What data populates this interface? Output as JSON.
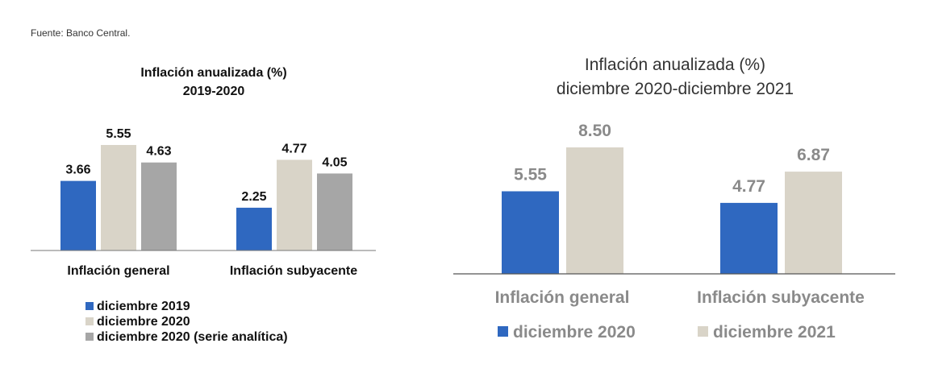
{
  "source": "Fuente: Banco Central.",
  "colors": {
    "blue": "#2f68c0",
    "beige": "#d9d4c8",
    "gray": "#a6a6a6",
    "axis": "#555555"
  },
  "chart_data": [
    {
      "type": "bar",
      "title": "Inflación anualizada (%)",
      "subtitle": "2019-2020",
      "categories": [
        "Inflación general",
        "Inflación subyacente"
      ],
      "series": [
        {
          "name": "diciembre 2019",
          "values": [
            3.66,
            2.25
          ]
        },
        {
          "name": "diciembre 2020",
          "values": [
            5.55,
            4.77
          ]
        },
        {
          "name": "diciembre 2020 (serie analítica)",
          "values": [
            4.63,
            4.05
          ]
        }
      ],
      "value_labels": [
        [
          "3.66",
          "2.25"
        ],
        [
          "5.55",
          "4.77"
        ],
        [
          "4.63",
          "4.05"
        ]
      ],
      "ylim": [
        0,
        5.55
      ],
      "grid": false,
      "legend": "bottom"
    },
    {
      "type": "bar",
      "title": "Inflación anualizada (%)",
      "subtitle": "diciembre 2020-diciembre 2021",
      "categories": [
        "Inflación general",
        "Inflación subyacente"
      ],
      "series": [
        {
          "name": "diciembre 2020",
          "values": [
            5.55,
            4.77
          ]
        },
        {
          "name": "diciembre 2021",
          "values": [
            8.5,
            6.87
          ]
        }
      ],
      "value_labels": [
        [
          "5.55",
          "4.77"
        ],
        [
          "8.50",
          "6.87"
        ]
      ],
      "ylim": [
        0,
        8.5
      ],
      "grid": false,
      "legend": "bottom"
    }
  ]
}
